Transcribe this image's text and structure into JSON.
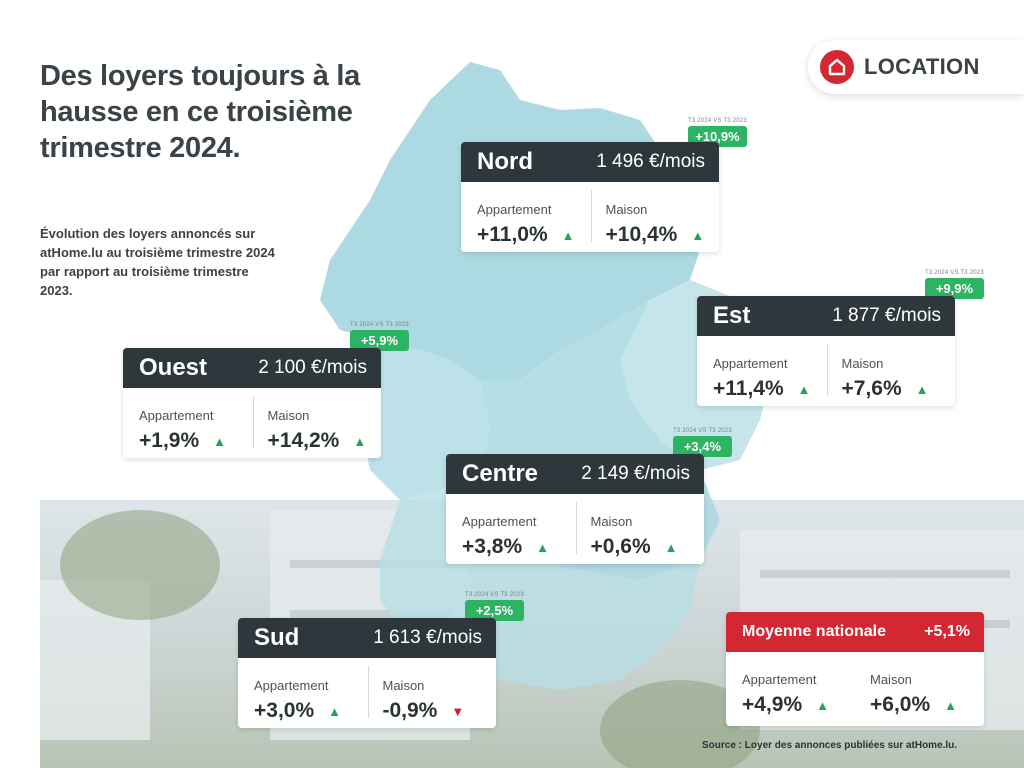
{
  "title": "Des loyers toujours à la hausse en ce troisième trimestre 2024.",
  "subtitle": "Évolution des loyers annoncés sur atHome.lu au troisième trimestre 2024 par rapport au troisième trimestre 2023.",
  "badge": {
    "label": "LOCATION",
    "icon": "house-icon"
  },
  "yoy_caption": "T3 2024 VS T3 2023",
  "labels": {
    "apartment": "Appartement",
    "house": "Maison"
  },
  "colors": {
    "dark": "#2d373c",
    "accent": "#d32733",
    "green": "#2cb463",
    "map": "#a9d8e0"
  },
  "regions": {
    "nord": {
      "name": "Nord",
      "price": "1 496 €/mois",
      "yoy": "+10,9%",
      "apartment": "+11,0%",
      "house": "+10,4%",
      "apartment_trend": "up",
      "house_trend": "up"
    },
    "est": {
      "name": "Est",
      "price": "1 877 €/mois",
      "yoy": "+9,9%",
      "apartment": "+11,4%",
      "house": "+7,6%",
      "apartment_trend": "up",
      "house_trend": "up"
    },
    "ouest": {
      "name": "Ouest",
      "price": "2 100 €/mois",
      "yoy": "+5,9%",
      "apartment": "+1,9%",
      "house": "+14,2%",
      "apartment_trend": "up",
      "house_trend": "up"
    },
    "centre": {
      "name": "Centre",
      "price": "2 149 €/mois",
      "yoy": "+3,4%",
      "apartment": "+3,8%",
      "house": "+0,6%",
      "apartment_trend": "up",
      "house_trend": "up"
    },
    "sud": {
      "name": "Sud",
      "price": "1 613 €/mois",
      "yoy": "+2,5%",
      "apartment": "+3,0%",
      "house": "-0,9%",
      "apartment_trend": "up",
      "house_trend": "down"
    }
  },
  "national": {
    "name": "Moyenne nationale",
    "value": "+5,1%",
    "apartment": "+4,9%",
    "house": "+6,0%"
  },
  "source": "Source : Loyer des annonces publiées sur atHome.lu."
}
